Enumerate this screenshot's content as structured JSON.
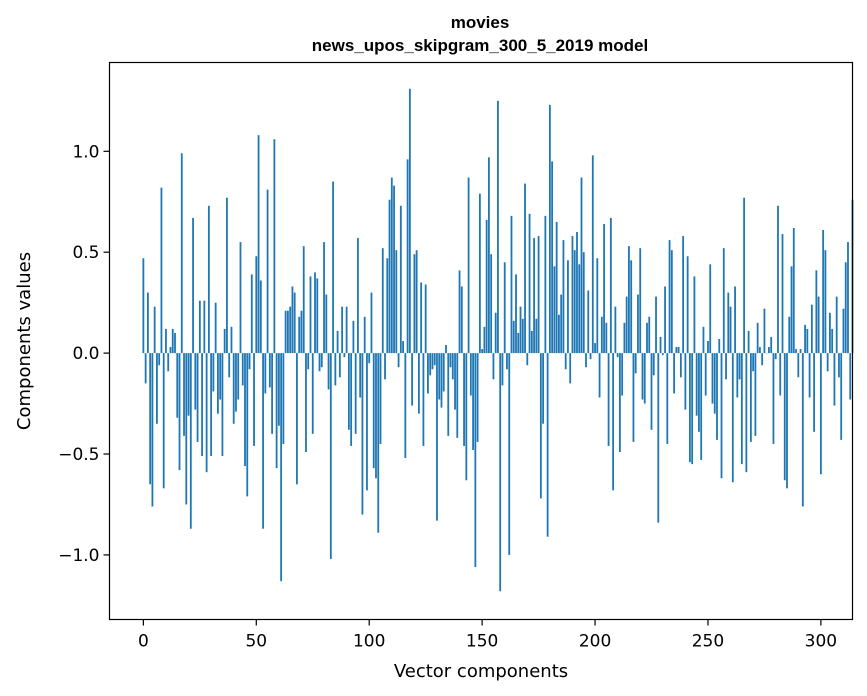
{
  "chart_data": {
    "type": "bar",
    "title_line1": "movies",
    "title_line2": "news_upos_skipgram_300_5_2019 model",
    "xlabel": "Vector components",
    "ylabel": "Components values",
    "xlim": [
      -15,
      314
    ],
    "ylim": [
      -1.32,
      1.44
    ],
    "x_ticks": [
      0,
      50,
      100,
      150,
      200,
      250,
      300
    ],
    "y_ticks": [
      1.0,
      0.5,
      0.0,
      -0.5,
      -1.0
    ],
    "y_tick_labels": [
      "1.0",
      "0.5",
      "0.0",
      "−0.5",
      "−1.0"
    ],
    "bar_color": "#1f77b4",
    "values": [
      0.47,
      -0.15,
      0.3,
      -0.65,
      -0.76,
      0.23,
      -0.35,
      -0.06,
      0.82,
      -0.67,
      0.12,
      -0.09,
      0.03,
      0.12,
      0.1,
      -0.32,
      -0.58,
      0.99,
      -0.41,
      -0.75,
      -0.31,
      -0.87,
      0.67,
      -0.28,
      -0.44,
      0.26,
      -0.51,
      0.26,
      -0.59,
      0.73,
      -0.51,
      -0.19,
      0.25,
      -0.3,
      -0.23,
      -0.51,
      0.12,
      0.77,
      -0.12,
      0.13,
      -0.35,
      -0.29,
      -0.23,
      0.55,
      -0.16,
      -0.56,
      -0.71,
      -0.08,
      0.39,
      -0.46,
      0.48,
      1.08,
      0.36,
      -0.87,
      -0.2,
      0.81,
      -0.17,
      -0.4,
      1.06,
      -0.57,
      -0.36,
      -1.13,
      -0.45,
      0.21,
      0.21,
      0.23,
      0.33,
      0.3,
      -0.65,
      0.18,
      0.21,
      0.53,
      -0.49,
      -0.08,
      0.38,
      -0.4,
      0.4,
      0.37,
      -0.09,
      -0.07,
      0.55,
      0.29,
      -0.18,
      -1.02,
      0.85,
      -0.16,
      0.11,
      -0.12,
      0.23,
      -0.02,
      0.23,
      -0.38,
      -0.46,
      0.16,
      -0.4,
      0.57,
      -0.22,
      -0.8,
      0.18,
      -0.68,
      -0.05,
      0.3,
      -0.57,
      -0.62,
      -0.89,
      -0.45,
      0.52,
      -0.13,
      0.47,
      0.76,
      0.87,
      0.83,
      0.51,
      -0.07,
      0.73,
      0.06,
      -0.52,
      0.96,
      1.31,
      -0.26,
      0.49,
      0.51,
      -0.3,
      0.35,
      -0.46,
      0.34,
      -0.2,
      -0.11,
      -0.08,
      -0.06,
      -0.83,
      -0.23,
      -0.27,
      -0.19,
      0.04,
      -0.41,
      -0.07,
      -0.13,
      -0.28,
      -0.42,
      0.41,
      0.33,
      -0.46,
      -0.63,
      0.87,
      -0.21,
      -0.48,
      -1.06,
      -0.44,
      0.79,
      0.02,
      0.13,
      0.66,
      0.97,
      0.49,
      -0.13,
      0.2,
      1.25,
      -1.18,
      -0.16,
      0.45,
      -0.08,
      -1.0,
      0.68,
      0.16,
      0.39,
      0.1,
      0.23,
      0.17,
      0.84,
      -0.06,
      0.69,
      0.11,
      0.57,
      0.17,
      0.58,
      -0.72,
      -0.35,
      0.68,
      -0.91,
      1.23,
      0.95,
      0.43,
      0.65,
      0.19,
      0.29,
      0.56,
      -0.08,
      0.46,
      -0.15,
      0.58,
      0.51,
      0.6,
      0.44,
      0.87,
      0.5,
      -0.07,
      0.31,
      -0.03,
      0.98,
      0.05,
      0.47,
      -0.22,
      0.18,
      0.64,
      0.15,
      -0.46,
      0.67,
      -0.68,
      0.23,
      -0.02,
      -0.49,
      -0.21,
      0.15,
      0.28,
      0.53,
      0.46,
      -0.44,
      -0.1,
      0.29,
      0.52,
      -0.23,
      -0.25,
      0.15,
      0.18,
      -0.38,
      -0.11,
      0.28,
      -0.84,
      0.08,
      -0.01,
      0.33,
      -0.45,
      0.56,
      0.51,
      -0.2,
      0.03,
      0.03,
      -0.12,
      0.58,
      -0.28,
      0.48,
      -0.54,
      -0.55,
      0.38,
      -0.31,
      -0.39,
      -0.53,
      0.13,
      -0.21,
      0.06,
      0.44,
      -0.25,
      -0.3,
      -0.43,
      0.07,
      -0.62,
      0.52,
      -0.13,
      0.3,
      0.23,
      -0.64,
      0.33,
      -0.22,
      -0.13,
      -0.55,
      0.77,
      -0.59,
      0.11,
      -0.44,
      -0.09,
      -0.41,
      0.15,
      0.03,
      -0.06,
      0.22,
      0.0,
      0.03,
      0.08,
      -0.45,
      -0.03,
      0.73,
      -0.21,
      0.59,
      -0.63,
      -0.67,
      0.18,
      0.43,
      0.62,
      0.02,
      -0.12,
      0.02,
      -0.76,
      0.14,
      0.12,
      -0.22,
      0.24,
      -0.39,
      0.41,
      0.28,
      -0.6,
      0.61,
      0.51,
      -0.09,
      0.2,
      0.12,
      -0.26,
      0.28,
      -0.12,
      -0.43,
      0.22,
      0.45,
      0.55,
      -0.23,
      0.76
    ]
  }
}
